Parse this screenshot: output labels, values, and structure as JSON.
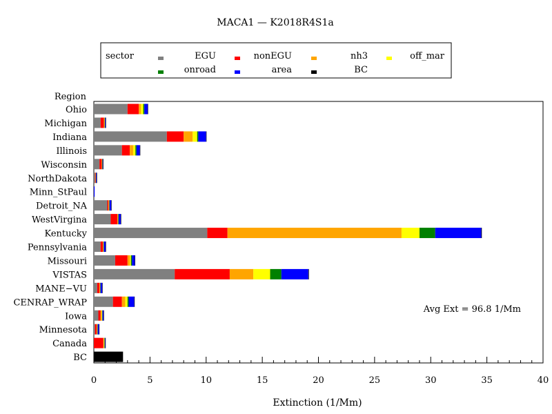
{
  "chart_data": {
    "type": "bar",
    "orientation": "horizontal",
    "stacked": true,
    "title": "MACA1 — K2018R4S1a",
    "xlabel": "Extinction (1/Mm)",
    "ylabel": "Region",
    "xlim": [
      0,
      40
    ],
    "x_ticks": [
      0,
      5,
      10,
      15,
      20,
      25,
      30,
      35,
      40
    ],
    "legend": {
      "title": "sector",
      "placement": "top"
    },
    "annotation": "Avg Ext =  96.8 1/Mm",
    "categories": [
      "Ohio",
      "Michigan",
      "Indiana",
      "Illinois",
      "Wisconsin",
      "NorthDakota",
      "Minn_StPaul",
      "Detroit_NA",
      "WestVirgina",
      "Kentucky",
      "Pennsylvania",
      "Missouri",
      "VISTAS",
      "MANE−VU",
      "CENRAP_WRAP",
      "Iowa",
      "Minnesota",
      "Canada",
      "BC"
    ],
    "series": [
      {
        "name": "EGU",
        "color": "#808080",
        "values": [
          3.0,
          0.6,
          6.5,
          2.5,
          0.5,
          0.1,
          0.0,
          1.2,
          1.5,
          10.1,
          0.6,
          1.9,
          7.2,
          0.3,
          1.7,
          0.4,
          0.1,
          0.0,
          0.0
        ]
      },
      {
        "name": "nonEGU",
        "color": "#ff0000",
        "values": [
          1.0,
          0.3,
          1.5,
          0.7,
          0.2,
          0.05,
          0.0,
          0.1,
          0.6,
          1.8,
          0.2,
          1.1,
          4.9,
          0.2,
          0.8,
          0.2,
          0.15,
          0.85,
          0.0
        ]
      },
      {
        "name": "nh3",
        "color": "#ffa500",
        "values": [
          0.2,
          0.05,
          0.8,
          0.3,
          0.03,
          0.02,
          0.0,
          0.05,
          0.05,
          15.5,
          0.05,
          0.2,
          2.1,
          0.05,
          0.3,
          0.1,
          0.05,
          0.05,
          0.0
        ]
      },
      {
        "name": "off_mar",
        "color": "#ffff00",
        "values": [
          0.2,
          0.02,
          0.4,
          0.2,
          0.02,
          0.01,
          0.0,
          0.02,
          0.02,
          1.6,
          0.02,
          0.1,
          1.5,
          0.02,
          0.2,
          0.05,
          0.02,
          0.05,
          0.0
        ]
      },
      {
        "name": "onroad",
        "color": "#008000",
        "values": [
          0.1,
          0.02,
          0.1,
          0.1,
          0.02,
          0.01,
          0.0,
          0.02,
          0.03,
          1.4,
          0.02,
          0.1,
          1.0,
          0.02,
          0.1,
          0.02,
          0.02,
          0.02,
          0.0
        ]
      },
      {
        "name": "area",
        "color": "#0000ff",
        "values": [
          0.3,
          0.06,
          0.7,
          0.3,
          0.05,
          0.06,
          0.07,
          0.16,
          0.2,
          4.1,
          0.16,
          0.25,
          2.4,
          0.16,
          0.5,
          0.1,
          0.12,
          0.05,
          0.0
        ]
      },
      {
        "name": "BC",
        "color": "#000000",
        "values": [
          0.02,
          0.02,
          0.02,
          0.02,
          0.02,
          0.02,
          0.0,
          0.02,
          0.02,
          0.05,
          0.02,
          0.02,
          0.05,
          0.02,
          0.02,
          0.02,
          0.02,
          0.02,
          2.6
        ]
      }
    ]
  }
}
